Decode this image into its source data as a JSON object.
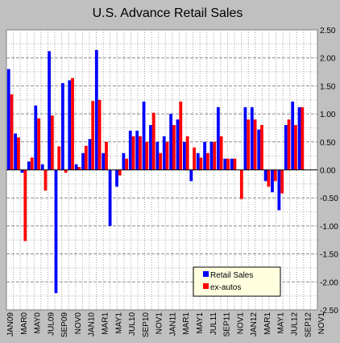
{
  "chart_data": {
    "type": "bar",
    "title": "U.S. Advance Retail Sales",
    "xlabel": "",
    "ylabel": "",
    "ylim": [
      -2.5,
      2.5
    ],
    "y_ticks": [
      2.5,
      2.0,
      1.5,
      1.0,
      0.5,
      0.0,
      -0.5,
      -1.0,
      -1.5,
      -2.0,
      -2.5
    ],
    "y_tick_labels": [
      "2.50",
      "2.00",
      "1.50",
      "1.00",
      "0.50",
      "0.00",
      "-0.50",
      "-1.00",
      "-1.50",
      "-2.00",
      "-2.50"
    ],
    "grid": true,
    "legend_position": "bottom-right",
    "categories": [
      "JAN09",
      "FEB09",
      "MAR09",
      "APR09",
      "MAY09",
      "JUN09",
      "JUL09",
      "AUG09",
      "SEP09",
      "OCT09",
      "NOV09",
      "DEC09",
      "JAN10",
      "FEB10",
      "MAR10",
      "APR10",
      "MAY10",
      "JUN10",
      "JUL10",
      "AUG10",
      "SEP10",
      "OCT10",
      "NOV10",
      "DEC10",
      "JAN11",
      "FEB11",
      "MAR11",
      "APR11",
      "MAY11",
      "JUN11",
      "JUL11",
      "AUG11",
      "SEP11",
      "OCT11",
      "NOV11",
      "DEC11",
      "JAN12",
      "FEB12",
      "MAR12",
      "APR12",
      "MAY12",
      "JUN12",
      "JUL12",
      "AUG12",
      "SEP12"
    ],
    "x_tick_labels": [
      "JAN09",
      "MAR0",
      "MAY0",
      "JUL09",
      "SEP09",
      "NOV0",
      "JAN10",
      "MAR1",
      "MAY1",
      "JUL10",
      "SEP10",
      "NOV1",
      "JAN11",
      "MAR1",
      "MAY1",
      "JUL11",
      "SEP11",
      "NOV1",
      "JAN12",
      "MAR1",
      "MAY1",
      "JUL12",
      "SEP12",
      "NOV1"
    ],
    "series": [
      {
        "name": "Retail Sales",
        "color": "#0000ff",
        "values": [
          1.8,
          0.65,
          -0.05,
          0.15,
          1.15,
          0.1,
          2.12,
          -2.2,
          1.55,
          1.6,
          0.1,
          0.3,
          0.55,
          2.14,
          0.3,
          -1.0,
          -0.3,
          0.3,
          0.7,
          0.7,
          1.22,
          0.8,
          0.5,
          0.6,
          1.0,
          0.9,
          0.5,
          -0.2,
          0.3,
          0.5,
          0.5,
          1.12,
          0.2,
          0.2,
          0.0,
          1.12,
          1.12,
          0.72,
          -0.2,
          -0.4,
          -0.72,
          0.8,
          1.22,
          1.12,
          null
        ]
      },
      {
        "name": "ex-autos",
        "color": "#ff0000",
        "values": [
          1.35,
          0.58,
          -1.27,
          0.22,
          0.92,
          -0.37,
          0.97,
          0.42,
          -0.05,
          1.64,
          0.05,
          0.43,
          1.23,
          1.25,
          0.5,
          0.0,
          -0.1,
          0.2,
          0.6,
          0.6,
          0.5,
          1.02,
          0.3,
          0.5,
          0.8,
          1.22,
          0.6,
          0.4,
          0.22,
          0.3,
          0.5,
          0.6,
          0.2,
          0.2,
          -0.52,
          0.9,
          0.9,
          0.8,
          -0.3,
          -0.2,
          -0.42,
          0.9,
          0.8,
          1.12,
          null
        ]
      }
    ]
  }
}
